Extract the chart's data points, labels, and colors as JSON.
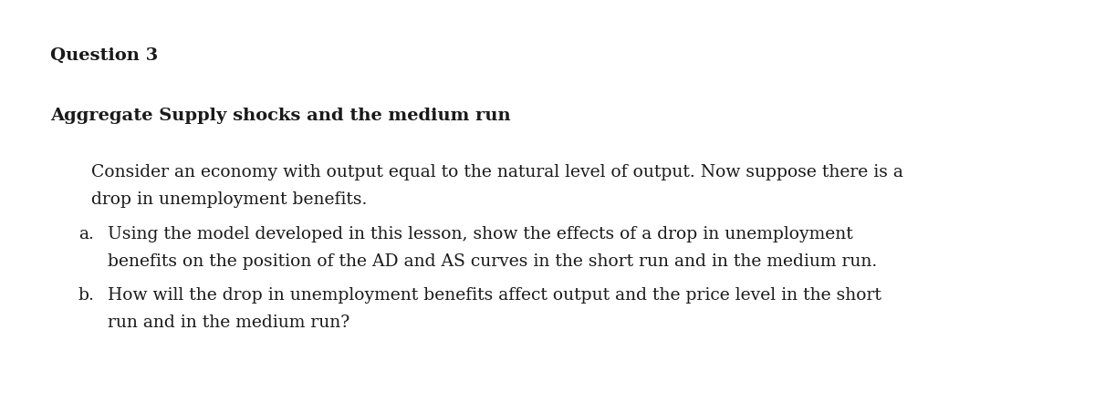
{
  "background_color": "#ffffff",
  "text_color": "#1a1a1a",
  "font_family": "DejaVu Serif",
  "title": "Question 3",
  "subtitle": "Aggregate Supply shocks and the medium run",
  "intro_line1": "Consider an economy with output equal to the natural level of output. Now suppose there is a",
  "intro_line2": "drop in unemployment benefits.",
  "label_a": "a.",
  "text_a_line1": "Using the model developed in this lesson, show the effects of a drop in unemployment",
  "text_a_line2": "benefits on the position of the AD and AS curves in the short run and in the medium run.",
  "label_b": "b.",
  "text_b_line1": "How will the drop in unemployment benefits affect output and the price level in the short",
  "text_b_line2": "run and in the medium run?",
  "title_fontsize": 14,
  "subtitle_fontsize": 14,
  "body_fontsize": 13.5,
  "fig_width": 12.0,
  "fig_height": 4.41,
  "dpi": 100
}
